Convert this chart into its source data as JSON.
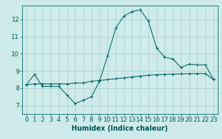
{
  "xlabel": "Humidex (Indice chaleur)",
  "ylabel": "",
  "background_color": "#ceeaea",
  "grid_color": "#a8cccc",
  "line_color": "#006666",
  "xlim": [
    -0.5,
    23.5
  ],
  "ylim": [
    6.5,
    12.8
  ],
  "yticks": [
    7,
    8,
    9,
    10,
    11,
    12
  ],
  "xticks": [
    0,
    1,
    2,
    3,
    4,
    5,
    6,
    7,
    8,
    9,
    10,
    11,
    12,
    13,
    14,
    15,
    16,
    17,
    18,
    19,
    20,
    21,
    22,
    23
  ],
  "series1_x": [
    0,
    1,
    2,
    3,
    4,
    5,
    6,
    7,
    8,
    9,
    10,
    11,
    12,
    13,
    14,
    15,
    16,
    17,
    18,
    19,
    20,
    21,
    22,
    23
  ],
  "series1_y": [
    8.2,
    8.8,
    8.1,
    8.1,
    8.1,
    7.6,
    7.1,
    7.3,
    7.5,
    8.4,
    9.9,
    11.5,
    12.2,
    12.45,
    12.55,
    11.9,
    10.35,
    9.8,
    9.7,
    9.2,
    9.4,
    9.35,
    9.35,
    8.5
  ],
  "series2_x": [
    0,
    1,
    2,
    3,
    4,
    5,
    6,
    7,
    8,
    9,
    10,
    11,
    12,
    13,
    14,
    15,
    16,
    17,
    18,
    19,
    20,
    21,
    22,
    23
  ],
  "series2_y": [
    8.2,
    8.25,
    8.25,
    8.25,
    8.25,
    8.25,
    8.3,
    8.3,
    8.4,
    8.45,
    8.5,
    8.55,
    8.6,
    8.65,
    8.7,
    8.75,
    8.78,
    8.8,
    8.82,
    8.83,
    8.84,
    8.85,
    8.85,
    8.5
  ],
  "marker": "+",
  "markersize": 3,
  "linewidth": 0.8,
  "font_color": "#005555",
  "xlabel_fontsize": 7,
  "tick_fontsize": 6.5
}
